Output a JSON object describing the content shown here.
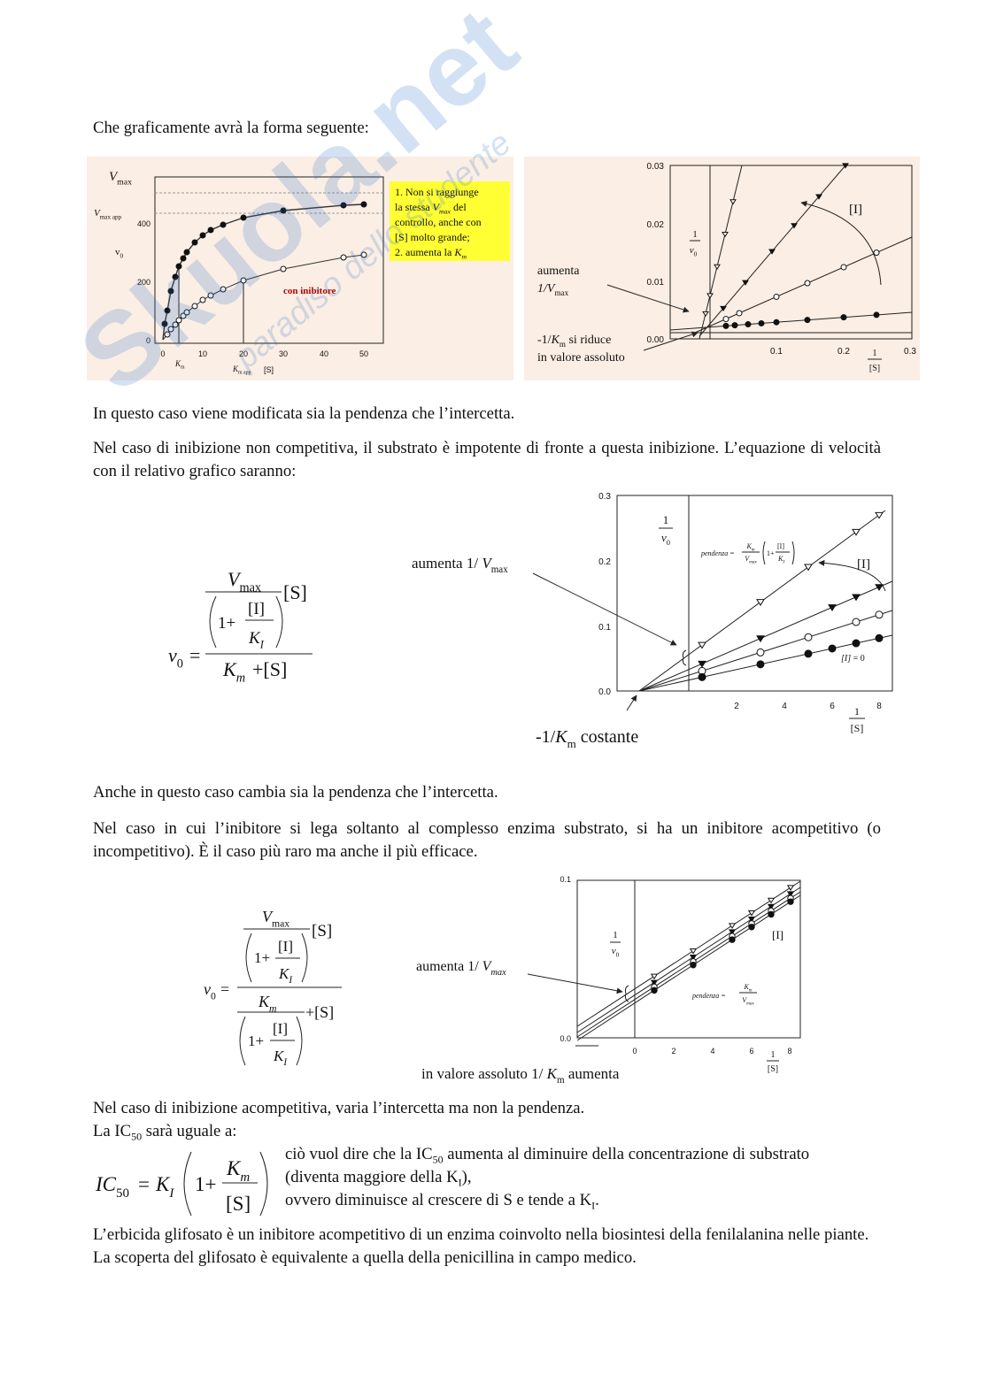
{
  "watermark": {
    "brand": "Skuola.net",
    "tagline": "paradiso dello studente"
  },
  "paragraphs": [
    "Che graficamente avrà la forma seguente:",
    "In questo caso viene modificata sia la pendenza che l’intercetta.",
    "Nel caso di inibizione non competitiva, il substrato è impotente di fronte a questa inibizione. L’equazione di velocità con il relativo grafico saranno:",
    "Anche in questo caso cambia sia la pendenza che l’intercetta.",
    "Nel caso in cui l’inibitore si lega soltanto al complesso enzima substrato, si ha un inibitore acompetitivo (o incompetitivo). È il caso più raro ma anche il più efficace.",
    "Nel caso di inibizione acompetitiva, varia l’intercetta ma non la pendenza.",
    [
      "La IC",
      {
        "sub": "50"
      },
      " sarà uguale a:"
    ],
    "L’erbicida glifosato è un inibitore acompetitivo di un enzima coinvolto nella biosintesi della fenilalanina nelle piante. La scoperta del glifosato è equivalente a quella della penicillina in campo medico."
  ],
  "figure1": {
    "left": {
      "vmax": [
        {
          "i": "V"
        },
        {
          "sub": "max"
        }
      ],
      "vmax_app": [
        {
          "i": "V"
        },
        {
          "sub": "max app"
        }
      ],
      "v0": [
        "v",
        {
          "sub": "0"
        }
      ],
      "yticks": [
        "0",
        "200",
        "400"
      ],
      "xticks": [
        "0",
        "10",
        "20",
        "30",
        "40",
        "50"
      ],
      "km": [
        {
          "i": "K"
        },
        {
          "sub": "m"
        }
      ],
      "km_app": [
        {
          "i": "K"
        },
        {
          "sub": "m app"
        }
      ],
      "x_label": "[S]",
      "curve_label": "con inibitore",
      "note": [
        [
          "1. Non si raggiunge"
        ],
        [
          "la stessa ",
          {
            "i": "V"
          },
          {
            "isub": "max"
          },
          " del"
        ],
        [
          "controllo, anche con"
        ],
        [
          "[S] molto grande;"
        ],
        [
          "2. aumenta la ",
          {
            "i": "K"
          },
          {
            "isub": "m"
          }
        ]
      ]
    },
    "right": {
      "yticks": [
        "0.03",
        "0.02",
        "0.01",
        "0.00"
      ],
      "xticks": [
        "0.1",
        "0.2",
        "0.3"
      ],
      "y_label": {
        "num": "1",
        "den": [
          {
            "i": "v"
          },
          {
            "sub": "0"
          }
        ]
      },
      "x_label": {
        "num": "1",
        "den": "[S]"
      },
      "inhibitor": "[I]",
      "vmax_label": [
        [
          "aumenta"
        ],
        [
          {
            "i": "1/V"
          },
          {
            "sub": "max"
          }
        ]
      ],
      "km_label": [
        [
          "-1/",
          {
            "i": "K"
          },
          {
            "sub": "m"
          },
          " si riduce"
        ],
        [
          "in valore assoluto"
        ]
      ]
    }
  },
  "figure2": {
    "equation": {
      "lhs": [
        {
          "i": "v"
        },
        {
          "sub": "0"
        }
      ],
      "eq": "=",
      "vmax": [
        {
          "i": "V"
        },
        {
          "sub": "max"
        }
      ],
      "s": "[S]",
      "one_plus": "1+",
      "i": "[I]",
      "ki": [
        {
          "i": "K"
        },
        {
          "isub": "I"
        }
      ],
      "km": [
        {
          "i": "K"
        },
        {
          "isub": "m"
        }
      ],
      "plus_s": "+[S]"
    },
    "plot": {
      "yticks": [
        "0.3",
        "0.2",
        "0.1",
        "0.0"
      ],
      "xticks": [
        "2",
        "4",
        "6",
        "8"
      ],
      "y_label": {
        "num": "1",
        "den": [
          {
            "i": "v"
          },
          {
            "sub": "0"
          }
        ]
      },
      "x_label": {
        "num": "1",
        "den": "[S]"
      },
      "inhibitor": "[I]",
      "zero_label": [
        {
          "i": "[I]"
        },
        " = 0"
      ],
      "slope": {
        "prefix": "pendenza =",
        "num": [
          {
            "i": "K"
          },
          {
            "isub": "m"
          }
        ],
        "den": [
          {
            "i": "V"
          },
          {
            "isub": "max"
          }
        ],
        "one_plus": "1+",
        "i": "[I]",
        "ki": [
          {
            "i": "K"
          },
          {
            "isub": "I"
          }
        ]
      },
      "vmax_label": [
        "aumenta 1/ ",
        {
          "i": "V"
        },
        {
          "sub": "max"
        }
      ],
      "km_label": [
        "-1/",
        {
          "i": "K"
        },
        {
          "sub": "m"
        },
        " costante"
      ]
    }
  },
  "figure3": {
    "equation": {
      "lhs": [
        {
          "i": "v"
        },
        {
          "sub": "0"
        }
      ],
      "eq": "=",
      "vmax": [
        {
          "i": "V"
        },
        {
          "sub": "max"
        }
      ],
      "s": "[S]",
      "one_plus": "1+",
      "i": "[I]",
      "ki": [
        {
          "i": "K"
        },
        {
          "isub": "I"
        }
      ],
      "km": [
        {
          "i": "K"
        },
        {
          "isub": "m"
        }
      ],
      "plus_s": "+[S]"
    },
    "plot": {
      "yticks": [
        "0.1",
        "0.0"
      ],
      "xticks": [
        "0",
        "2",
        "4",
        "6",
        "8"
      ],
      "y_label": {
        "num": "1",
        "den": [
          {
            "i": "v"
          },
          {
            "sub": "0"
          }
        ]
      },
      "x_label": {
        "num": "1",
        "den": "[S]"
      },
      "inhibitor": "[I]",
      "slope": {
        "prefix": "pendenza =",
        "num": [
          {
            "i": "K"
          },
          {
            "isub": "m"
          }
        ],
        "den": [
          {
            "i": "V"
          },
          {
            "isub": "max"
          }
        ]
      },
      "vmax_label": [
        "aumenta 1/ ",
        {
          "i": "V"
        },
        {
          "isub": "max"
        }
      ],
      "km_label": [
        "in valore assoluto 1/ ",
        {
          "i": "K"
        },
        {
          "sub": "m"
        },
        " aumenta"
      ]
    }
  },
  "ic50": {
    "equation": {
      "lhs": [
        {
          "i": "IC"
        },
        {
          "sub": "50"
        }
      ],
      "eq": "=",
      "ki": [
        {
          "i": "K"
        },
        {
          "isub": "I"
        }
      ],
      "one_plus": "1+",
      "km": [
        {
          "i": "K"
        },
        {
          "isub": "m"
        }
      ],
      "s": "[S]"
    },
    "lines": [
      [
        "ciò vuol dire che la IC",
        {
          "sub": "50"
        },
        " aumenta al diminuire della concentrazione di substrato"
      ],
      [
        "(diventa maggiore della K",
        {
          "sub": "I"
        },
        "),"
      ],
      [
        "ovvero diminuisce al crescere di S e tende a K",
        {
          "sub": "I"
        },
        "."
      ]
    ]
  }
}
